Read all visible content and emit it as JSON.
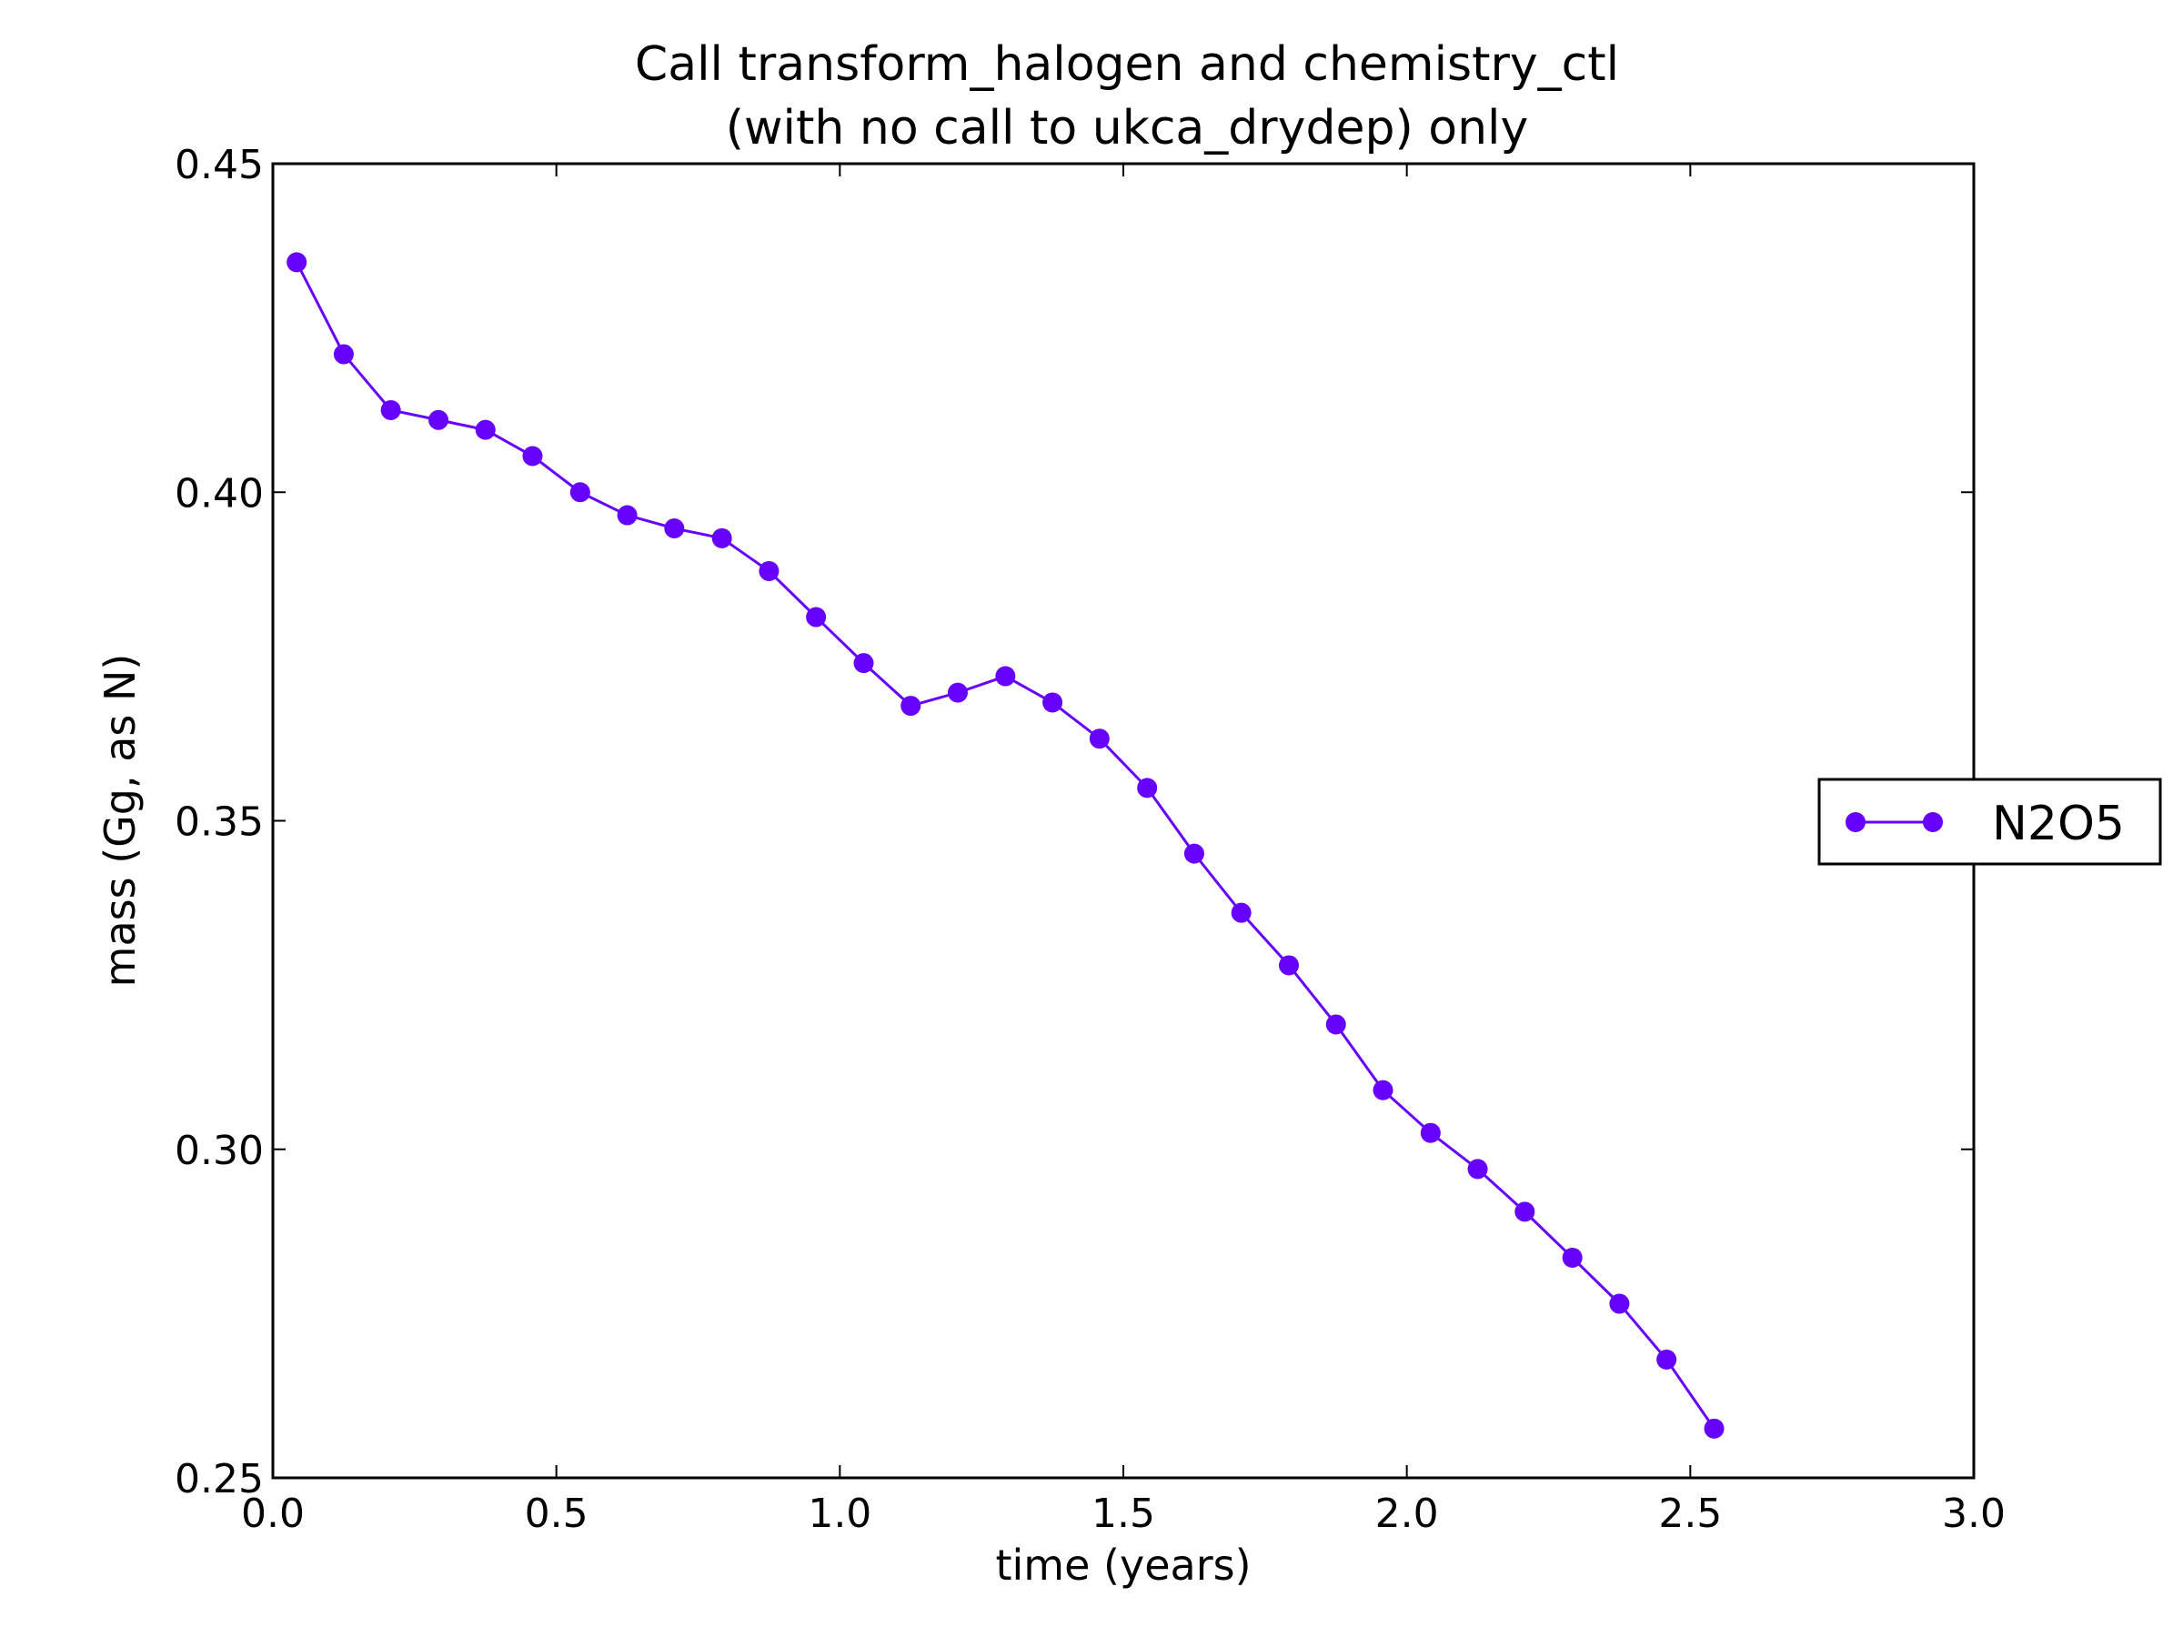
{
  "chart_data": {
    "type": "line",
    "title_lines": [
      "Call transform_halogen and chemistry_ctl",
      "(with no call to ukca_drydep) only"
    ],
    "xlabel": "time (years)",
    "ylabel": "mass (Gg, as N)",
    "xlim": [
      0.0,
      3.0
    ],
    "ylim": [
      0.25,
      0.45
    ],
    "xticks": [
      "0.0",
      "0.5",
      "1.0",
      "1.5",
      "2.0",
      "2.5",
      "3.0"
    ],
    "yticks": [
      "0.25",
      "0.30",
      "0.35",
      "0.40",
      "0.45"
    ],
    "grid": false,
    "legend_position": "center-right, outside axes",
    "series": [
      {
        "name": "N2O5",
        "color": "#6600ff",
        "marker": "circle",
        "x": [
          0.042,
          0.125,
          0.208,
          0.292,
          0.375,
          0.458,
          0.542,
          0.625,
          0.708,
          0.792,
          0.875,
          0.958,
          1.042,
          1.125,
          1.208,
          1.292,
          1.375,
          1.458,
          1.542,
          1.625,
          1.708,
          1.792,
          1.875,
          1.958,
          2.042,
          2.125,
          2.208,
          2.292,
          2.375,
          2.458,
          2.542
        ],
        "y": [
          0.435,
          0.421,
          0.4125,
          0.411,
          0.4095,
          0.4055,
          0.4,
          0.3965,
          0.3945,
          0.393,
          0.388,
          0.381,
          0.374,
          0.3675,
          0.3695,
          0.372,
          0.368,
          0.3625,
          0.355,
          0.345,
          0.336,
          0.328,
          0.319,
          0.309,
          0.3025,
          0.297,
          0.2905,
          0.2835,
          0.2765,
          0.268,
          0.2575
        ]
      }
    ]
  }
}
